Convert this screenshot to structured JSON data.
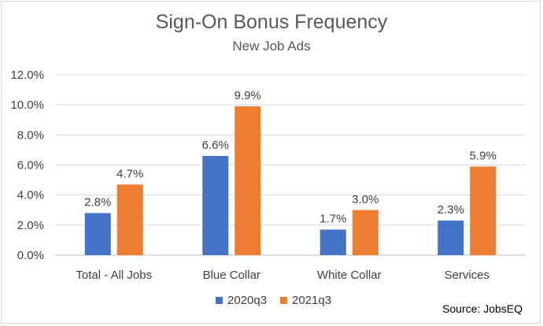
{
  "chart_data": {
    "type": "bar",
    "title": "Sign-On Bonus Frequency",
    "subtitle": "New Job Ads",
    "categories": [
      "Total - All Jobs",
      "Blue Collar",
      "White Collar",
      "Services"
    ],
    "series": [
      {
        "name": "2020q3",
        "color": "#4472C4",
        "values": [
          2.8,
          6.6,
          1.7,
          2.3
        ],
        "labels": [
          "2.8%",
          "6.6%",
          "1.7%",
          "2.3%"
        ]
      },
      {
        "name": "2021q3",
        "color": "#ED7D31",
        "values": [
          4.7,
          9.9,
          3.0,
          5.9
        ],
        "labels": [
          "4.7%",
          "9.9%",
          "3.0%",
          "5.9%"
        ]
      }
    ],
    "yticks": [
      "0.0%",
      "2.0%",
      "4.0%",
      "6.0%",
      "8.0%",
      "10.0%",
      "12.0%"
    ],
    "ylim": [
      0,
      12
    ],
    "grid": true,
    "legend": "bottom"
  },
  "source": "Source: JobsEQ"
}
